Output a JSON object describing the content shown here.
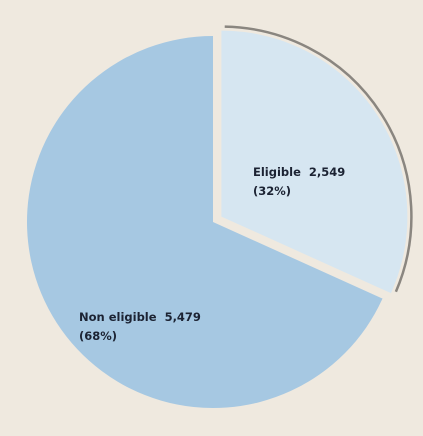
{
  "chart_data": {
    "type": "pie",
    "title": "",
    "legend": "none",
    "slices": [
      {
        "label": "Eligible",
        "value": 2549,
        "value_text": "2,549",
        "percent_text": "(32%)",
        "color": "#d6e6f1",
        "exploded": true
      },
      {
        "label": "Non eligible",
        "value": 5479,
        "value_text": "5,479",
        "percent_text": "(68%)",
        "color": "#a6c8e2",
        "exploded": false
      }
    ],
    "arc_outline_color": "#8a8680"
  }
}
